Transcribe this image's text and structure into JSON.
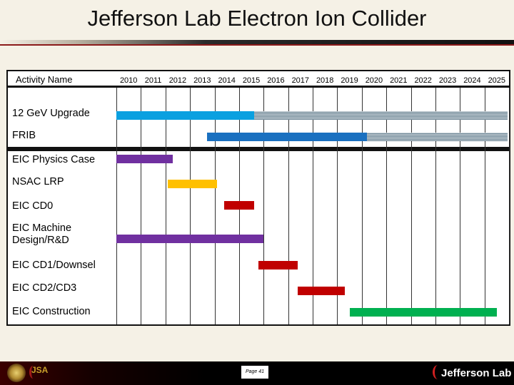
{
  "title": "Jefferson Lab Electron Ion Collider",
  "footer": {
    "page_label": "Page 41",
    "logo_left_text": "JSA",
    "logo_right_text": "Jefferson Lab"
  },
  "chart_data": {
    "type": "gantt",
    "header_label": "Activity Name",
    "years": [
      "2010",
      "2011",
      "2012",
      "2013",
      "2014",
      "2015",
      "2016",
      "2017",
      "2018",
      "2019",
      "2020",
      "2021",
      "2022",
      "2023",
      "2024",
      "2025"
    ],
    "x_range": [
      2010,
      2026
    ],
    "activities": [
      {
        "label": "12 GeV Upgrade",
        "start": 2010.0,
        "end": 2015.6,
        "color": "#0aa0e0",
        "continuation_end": 2026.0
      },
      {
        "label": "FRIB",
        "start": 2013.7,
        "end": 2020.2,
        "color": "#1a70c0",
        "continuation_end": 2026.0
      },
      {
        "label": "EIC Physics Case",
        "start": 2010.0,
        "end": 2012.3,
        "color": "#7030a0"
      },
      {
        "label": "NSAC LRP",
        "start": 2012.1,
        "end": 2014.1,
        "color": "#ffc000"
      },
      {
        "label": "EIC CD0",
        "start": 2014.4,
        "end": 2015.6,
        "color": "#c00000"
      },
      {
        "label": "EIC Machine Design/R&D",
        "start": 2010.0,
        "end": 2016.0,
        "color": "#7030a0"
      },
      {
        "label": "EIC CD1/Downsel",
        "start": 2015.8,
        "end": 2017.4,
        "color": "#c00000"
      },
      {
        "label": "EIC CD2/CD3",
        "start": 2017.4,
        "end": 2019.3,
        "color": "#c00000"
      },
      {
        "label": "EIC Construction",
        "start": 2019.5,
        "end": 2025.5,
        "color": "#00b050"
      }
    ]
  }
}
